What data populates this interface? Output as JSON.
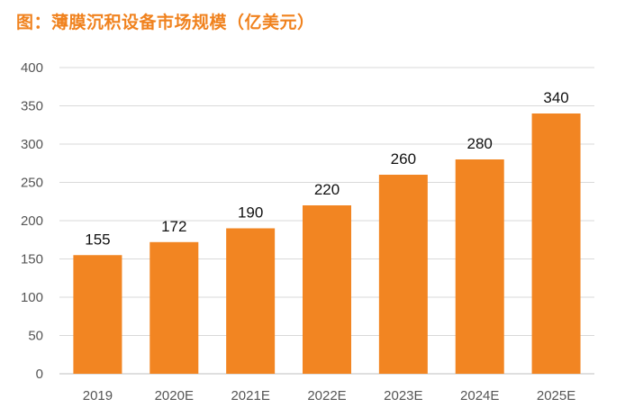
{
  "chart_data": {
    "type": "bar",
    "title": "图：薄膜沉积设备市场规模（亿美元）",
    "xlabel": "",
    "ylabel": "",
    "categories": [
      "2019",
      "2020E",
      "2021E",
      "2022E",
      "2023E",
      "2024E",
      "2025E"
    ],
    "values": [
      155,
      172,
      190,
      220,
      260,
      280,
      340
    ],
    "data_labels": [
      "155",
      "172",
      "190",
      "220",
      "260",
      "280",
      "340"
    ],
    "ylim": [
      0,
      400
    ],
    "yticks": [
      "0",
      "50",
      "100",
      "150",
      "200",
      "250",
      "300",
      "350",
      "400"
    ],
    "grid": true,
    "bar_color": "#f28522",
    "title_color": "#f0821e"
  }
}
